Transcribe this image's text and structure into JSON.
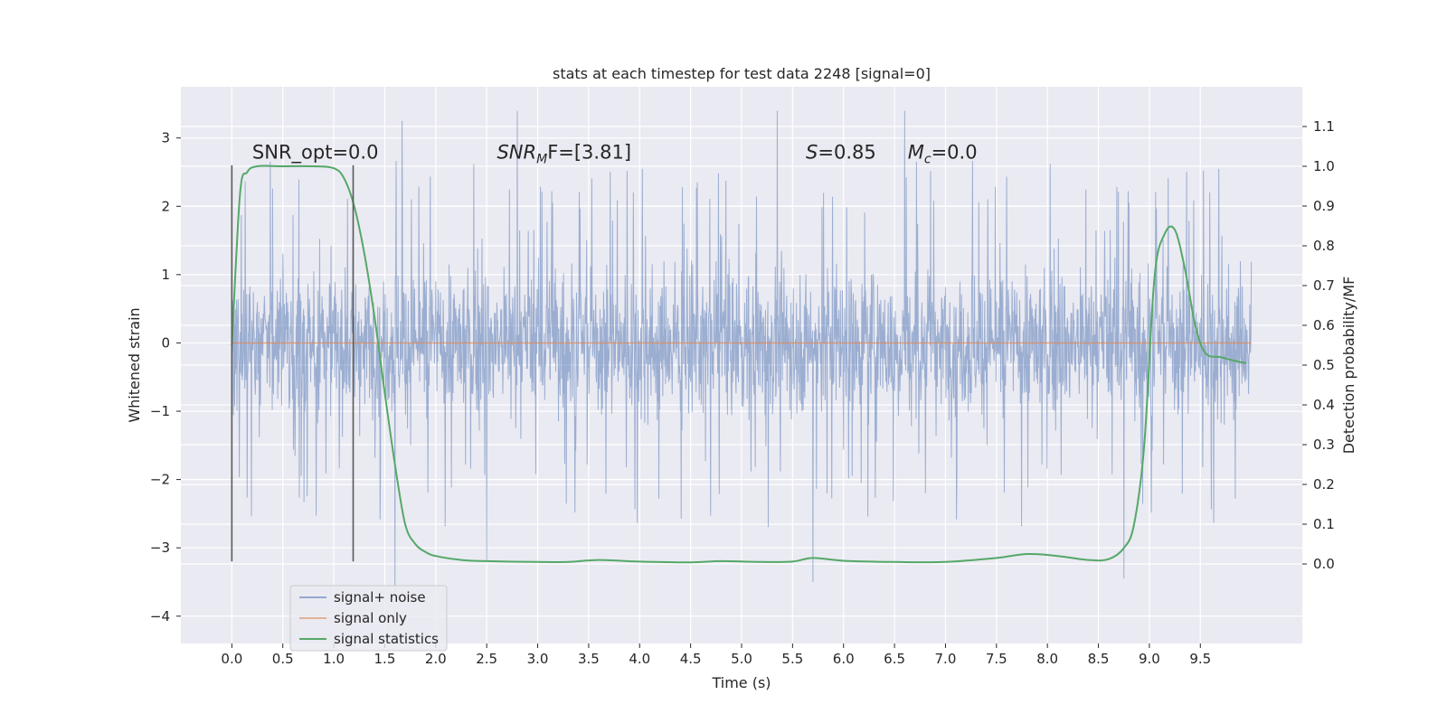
{
  "chart_data": {
    "type": "line",
    "title": "stats at each timestep for test data 2248 [signal=0]",
    "xlabel": "Time (s)",
    "ylabel": "Whitened strain",
    "y2label": "Detection probability/MF",
    "xlim": [
      -0.5,
      10.5
    ],
    "ylim": [
      -4.4,
      3.75
    ],
    "y2lim": [
      -0.2,
      1.2
    ],
    "x_ticks": [
      0.0,
      0.5,
      1.0,
      1.5,
      2.0,
      2.5,
      3.0,
      3.5,
      4.0,
      4.5,
      5.0,
      5.5,
      6.0,
      6.5,
      7.0,
      7.5,
      8.0,
      8.5,
      9.0,
      9.5
    ],
    "x_tick_labels": [
      "0.0",
      "0.5",
      "1.0",
      "1.5",
      "2.0",
      "2.5",
      "3.0",
      "3.5",
      "4.0",
      "4.5",
      "5.0",
      "5.5",
      "6.0",
      "6.5",
      "7.0",
      "7.5",
      "8.0",
      "8.5",
      "9.0",
      "9.5"
    ],
    "y_ticks": [
      -4,
      -3,
      -2,
      -1,
      0,
      1,
      2,
      3
    ],
    "y_tick_labels": [
      "−4",
      "−3",
      "−2",
      "−1",
      "0",
      "1",
      "2",
      "3"
    ],
    "y2_ticks": [
      0.0,
      0.1,
      0.2,
      0.3,
      0.4,
      0.5,
      0.6,
      0.7,
      0.8,
      0.9,
      1.0,
      1.1
    ],
    "y2_tick_labels": [
      "0.0",
      "0.1",
      "0.2",
      "0.3",
      "0.4",
      "0.5",
      "0.6",
      "0.7",
      "0.8",
      "0.9",
      "1.0",
      "1.1"
    ],
    "grid": true,
    "legend_position": "lower-left",
    "series": [
      {
        "name": "signal+ noise",
        "color": "#4c72b0",
        "axis": "left",
        "kind": "noise",
        "x_range": [
          0.0,
          10.0
        ],
        "envelope": {
          "typical_low": -1.5,
          "typical_high": 1.45,
          "max": 3.4,
          "min": -3.65
        },
        "peaks": [
          [
            1.67,
            3.25
          ],
          [
            2.8,
            3.4
          ],
          [
            5.35,
            3.4
          ],
          [
            6.6,
            3.4
          ],
          [
            1.6,
            -3.65
          ],
          [
            5.7,
            -3.5
          ],
          [
            8.75,
            -3.45
          ],
          [
            2.5,
            -3.2
          ]
        ]
      },
      {
        "name": "signal only",
        "color": "#dd8452",
        "axis": "left",
        "x": [
          0.0,
          10.0
        ],
        "y": [
          0.0,
          0.0
        ]
      },
      {
        "name": "signal statistics",
        "color": "#55a868",
        "axis": "right",
        "x": [
          0.0,
          0.08,
          0.15,
          0.25,
          0.5,
          0.8,
          1.0,
          1.1,
          1.2,
          1.3,
          1.4,
          1.5,
          1.6,
          1.7,
          1.8,
          1.9,
          2.0,
          2.25,
          2.5,
          3.0,
          3.3,
          3.6,
          4.0,
          4.5,
          4.8,
          5.2,
          5.5,
          5.7,
          6.0,
          6.5,
          7.0,
          7.5,
          7.8,
          8.1,
          8.4,
          8.6,
          8.75,
          8.85,
          8.95,
          9.05,
          9.15,
          9.25,
          9.35,
          9.45,
          9.55,
          9.7,
          9.85,
          9.95
        ],
        "y": [
          0.55,
          0.93,
          0.985,
          1.0,
          1.0,
          1.0,
          0.995,
          0.97,
          0.9,
          0.78,
          0.62,
          0.43,
          0.25,
          0.1,
          0.05,
          0.03,
          0.02,
          0.01,
          0.007,
          0.005,
          0.005,
          0.01,
          0.006,
          0.004,
          0.007,
          0.005,
          0.006,
          0.015,
          0.008,
          0.005,
          0.005,
          0.015,
          0.025,
          0.02,
          0.01,
          0.012,
          0.04,
          0.1,
          0.3,
          0.72,
          0.83,
          0.84,
          0.74,
          0.6,
          0.53,
          0.52,
          0.51,
          0.505
        ]
      }
    ],
    "vlines": [
      {
        "x": 0.0,
        "y_from": -3.2,
        "y_to": 2.6,
        "color": "#595959"
      },
      {
        "x": 1.19,
        "y_from": -3.2,
        "y_to": 2.6,
        "color": "#595959"
      }
    ],
    "annotations": [
      {
        "name": "snr-opt",
        "plain": "SNR_opt=0.0",
        "x": 0.2,
        "y": 2.7
      },
      {
        "name": "snr-mf",
        "main": "SNR",
        "sub": "M",
        "rest": "F=[3.81]",
        "x": 2.6,
        "y": 2.7
      },
      {
        "name": "s-stat",
        "main": "S",
        "rest": "=0.85",
        "x": 5.63,
        "y": 2.7
      },
      {
        "name": "mc-stat",
        "main": "M",
        "sub": "c",
        "rest": "=0.0",
        "x": 6.63,
        "y": 2.7
      }
    ]
  }
}
